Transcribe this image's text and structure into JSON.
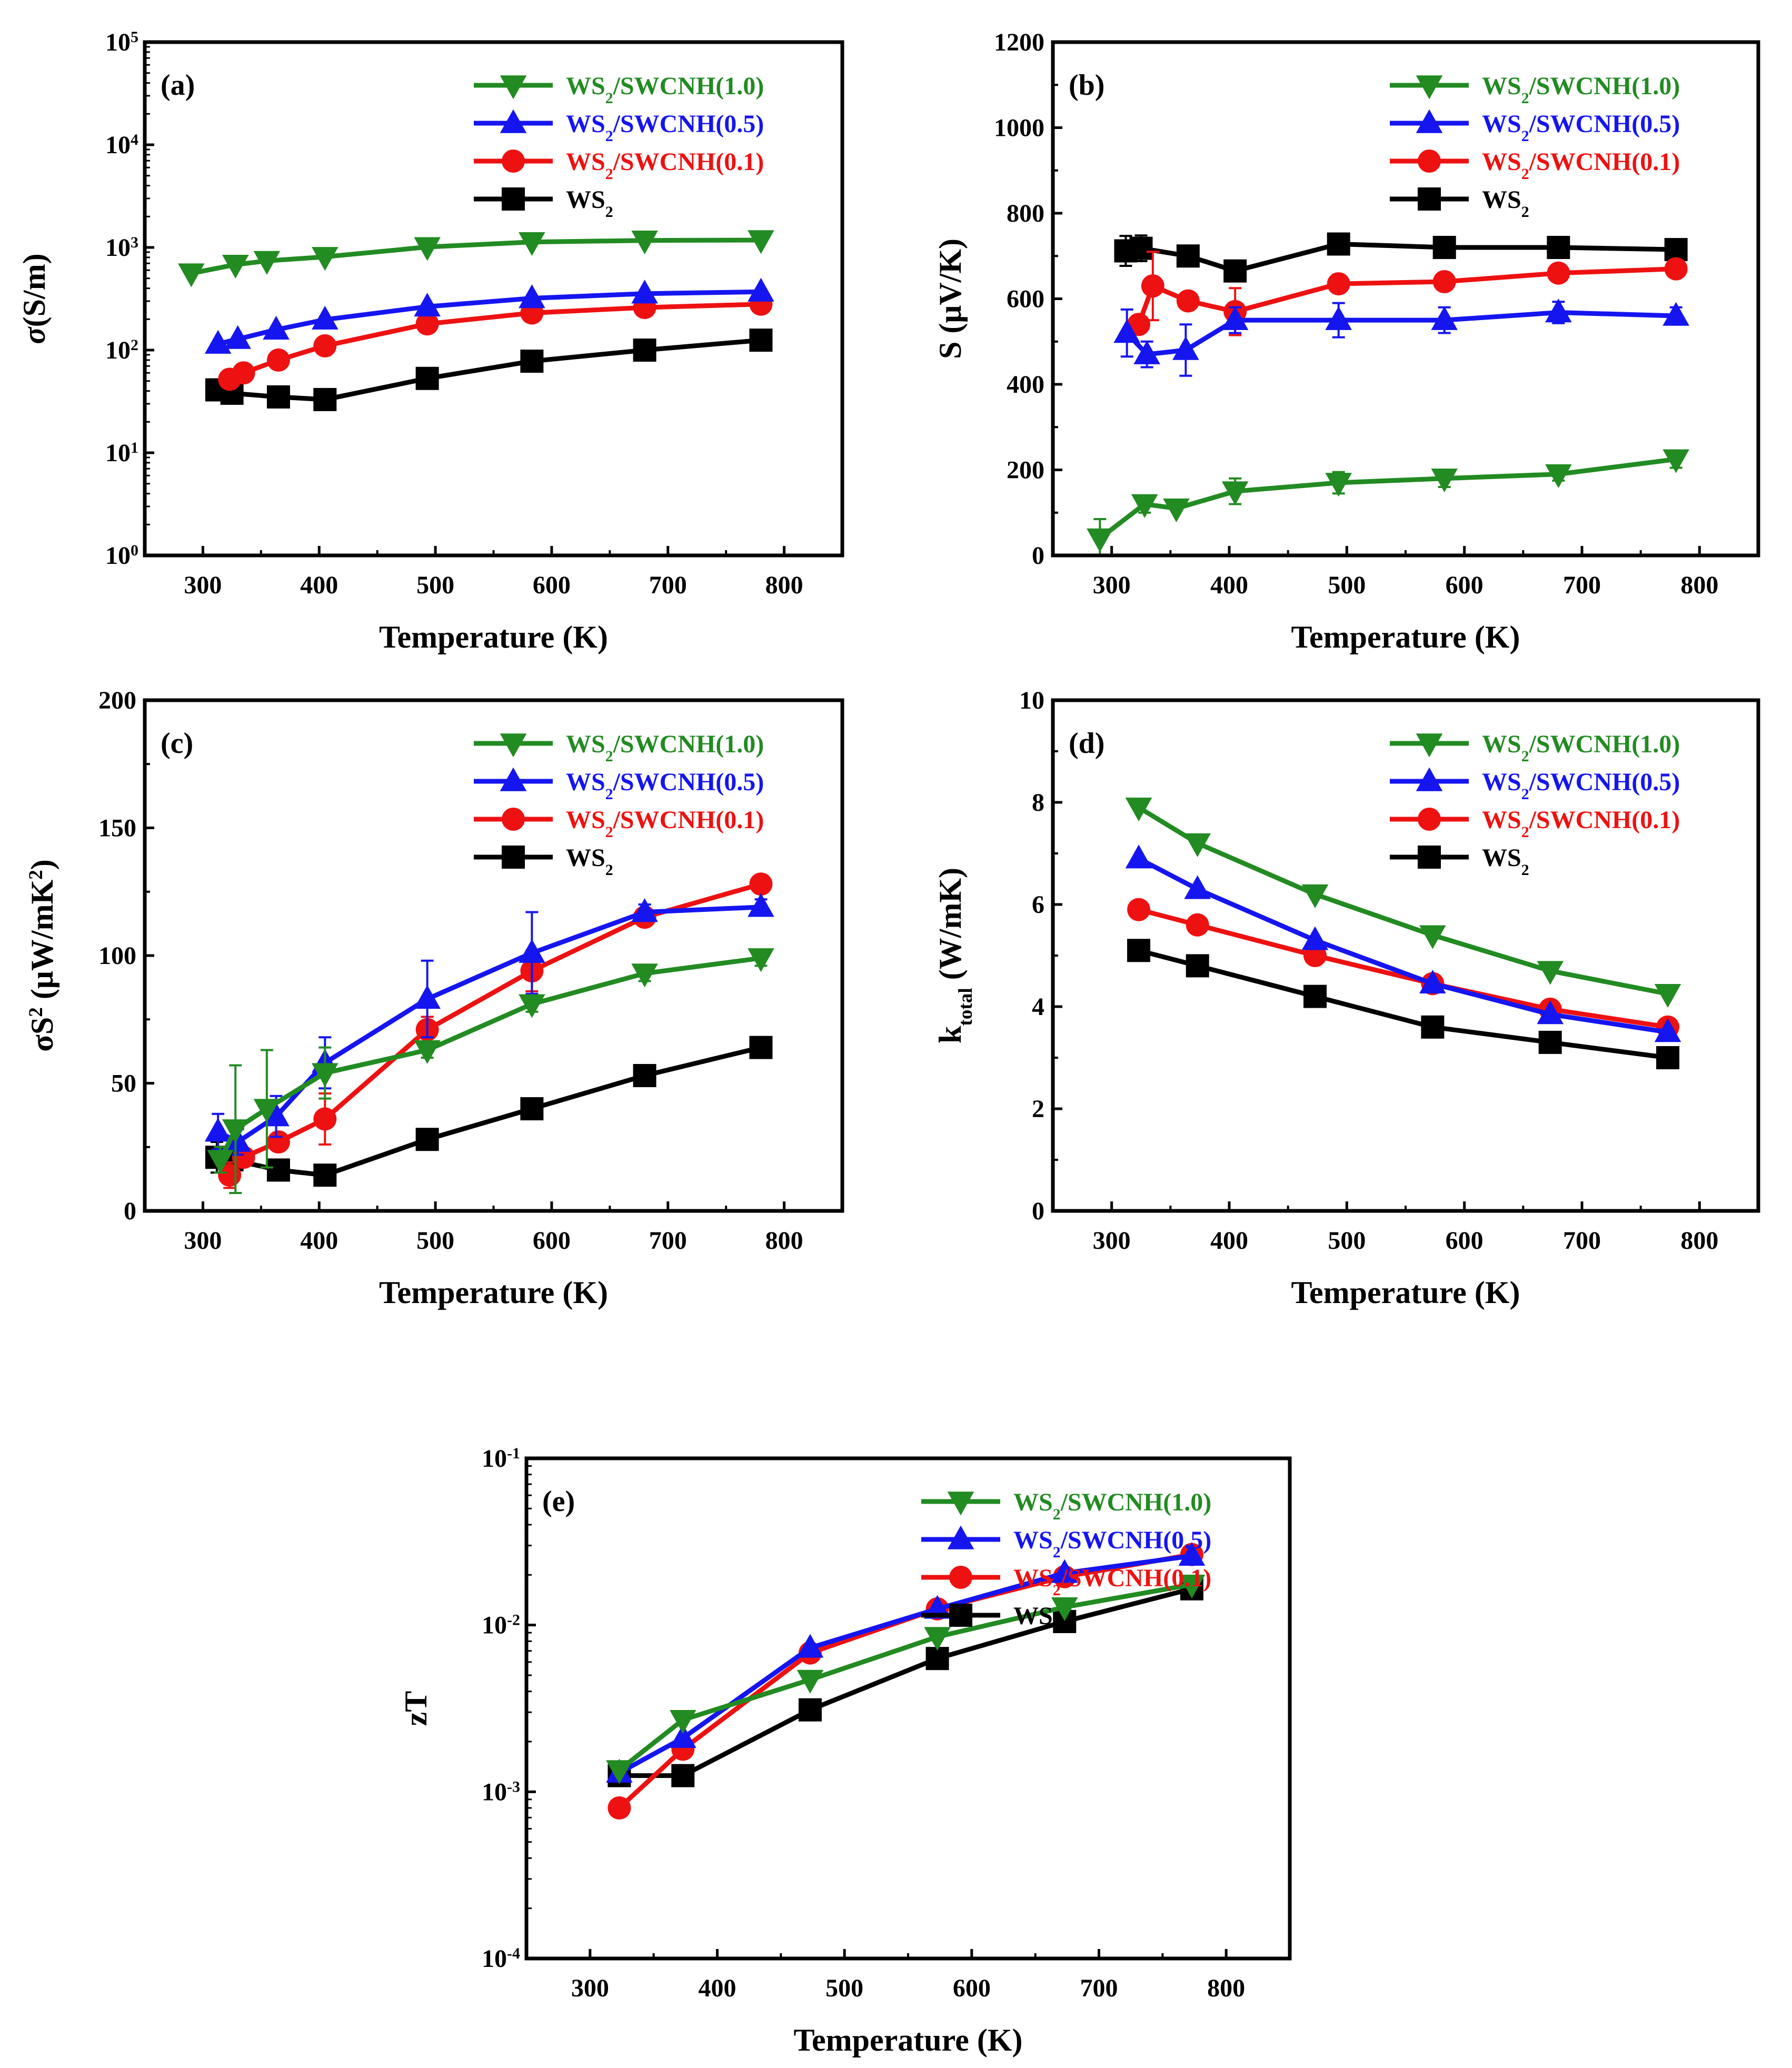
{
  "figure": {
    "legend_entries": [
      "WS2/SWCNH(1.0)",
      "WS2/SWCNH(0.5)",
      "WS2/SWCNH(0.1)",
      "WS2"
    ],
    "colors": {
      "WS2/SWCNH(1.0)": "#228b22",
      "WS2/SWCNH(0.5)": "#1515f0",
      "WS2/SWCNH(0.1)": "#ee1111",
      "WS2": "#000000"
    },
    "markers": {
      "WS2/SWCNH(1.0)": "triangle-down",
      "WS2/SWCNH(0.5)": "triangle-up",
      "WS2/SWCNH(0.1)": "circle",
      "WS2": "square"
    }
  },
  "chart_data": [
    {
      "id": "a",
      "panel_label": "(a)",
      "type": "line",
      "yscale": "log",
      "xlabel": "Temperature (K)",
      "ylabel": "σ(S/m)",
      "xlim": [
        250,
        850
      ],
      "ylim": [
        1,
        100000
      ],
      "xticks": [
        300,
        400,
        500,
        600,
        700,
        800
      ],
      "yticks": [
        1,
        10,
        100,
        1000,
        10000,
        100000
      ],
      "ytick_labels": [
        [
          "10",
          "0"
        ],
        [
          "10",
          "1"
        ],
        [
          "10",
          "2"
        ],
        [
          "10",
          "3"
        ],
        [
          "10",
          "4"
        ],
        [
          "10",
          "5"
        ]
      ],
      "series": [
        {
          "name": "WS2/SWCNH(1.0)",
          "x": [
            290,
            328,
            355,
            405,
            493,
            583,
            680,
            780
          ],
          "y": [
            560,
            680,
            740,
            810,
            1010,
            1130,
            1170,
            1180
          ]
        },
        {
          "name": "WS2/SWCNH(0.5)",
          "x": [
            313,
            330,
            363,
            405,
            493,
            583,
            680,
            780
          ],
          "y": [
            115,
            128,
            158,
            198,
            265,
            320,
            355,
            370
          ]
        },
        {
          "name": "WS2/SWCNH(0.1)",
          "x": [
            323,
            335,
            365,
            405,
            493,
            583,
            680,
            780
          ],
          "y": [
            52,
            60,
            80,
            110,
            180,
            230,
            260,
            280
          ]
        },
        {
          "name": "WS2",
          "x": [
            312,
            325,
            365,
            405,
            493,
            583,
            680,
            780
          ],
          "y": [
            41,
            38,
            35,
            33,
            53,
            78,
            100,
            125
          ]
        }
      ]
    },
    {
      "id": "b",
      "panel_label": "(b)",
      "type": "line",
      "yscale": "linear",
      "xlabel": "Temperature (K)",
      "ylabel": "S (μV/K)",
      "xlim": [
        250,
        850
      ],
      "ylim": [
        0,
        1200
      ],
      "xticks": [
        300,
        400,
        500,
        600,
        700,
        800
      ],
      "yticks": [
        0,
        200,
        400,
        600,
        800,
        1000,
        1200
      ],
      "series": [
        {
          "name": "WS2/SWCNH(1.0)",
          "x": [
            290,
            328,
            355,
            405,
            493,
            583,
            680,
            780
          ],
          "y": [
            40,
            120,
            110,
            150,
            170,
            180,
            190,
            225
          ],
          "err": [
            45,
            20,
            0,
            30,
            25,
            20,
            15,
            20
          ]
        },
        {
          "name": "WS2/SWCNH(0.5)",
          "x": [
            313,
            330,
            363,
            405,
            493,
            583,
            680,
            780
          ],
          "y": [
            520,
            470,
            480,
            550,
            550,
            550,
            568,
            560
          ],
          "err": [
            55,
            30,
            60,
            30,
            40,
            30,
            25,
            20
          ]
        },
        {
          "name": "WS2/SWCNH(0.1)",
          "x": [
            323,
            335,
            365,
            405,
            493,
            583,
            680,
            780
          ],
          "y": [
            540,
            630,
            595,
            570,
            635,
            640,
            660,
            670
          ],
          "err": [
            0,
            80,
            15,
            55,
            15,
            15,
            15,
            15
          ]
        },
        {
          "name": "WS2",
          "x": [
            312,
            325,
            365,
            405,
            493,
            583,
            680,
            780
          ],
          "y": [
            712,
            718,
            700,
            665,
            728,
            720,
            720,
            715
          ],
          "err": [
            35,
            30,
            20,
            15,
            12,
            15,
            20,
            15
          ]
        }
      ]
    },
    {
      "id": "c",
      "panel_label": "(c)",
      "type": "line",
      "yscale": "linear",
      "xlabel": "Temperature (K)",
      "ylabel": "σS² (μW/mK²)",
      "xlim": [
        250,
        850
      ],
      "ylim": [
        0,
        200
      ],
      "xticks": [
        300,
        400,
        500,
        600,
        700,
        800
      ],
      "yticks": [
        0,
        50,
        100,
        150,
        200
      ],
      "series": [
        {
          "name": "WS2/SWCNH(1.0)",
          "x": [
            315,
            328,
            355,
            405,
            493,
            583,
            680,
            780
          ],
          "y": [
            20,
            32,
            40,
            54,
            63,
            81,
            93,
            99
          ],
          "err": [
            5,
            25,
            23,
            10,
            3,
            3,
            3,
            3
          ]
        },
        {
          "name": "WS2/SWCNH(0.5)",
          "x": [
            313,
            330,
            363,
            405,
            493,
            583,
            680,
            780
          ],
          "y": [
            31,
            27,
            37,
            58,
            83,
            101,
            117,
            119
          ],
          "err": [
            7,
            5,
            8,
            10,
            15,
            16,
            3,
            3
          ]
        },
        {
          "name": "WS2/SWCNH(0.1)",
          "x": [
            323,
            335,
            365,
            405,
            493,
            583,
            680,
            780
          ],
          "y": [
            14,
            21,
            27,
            36,
            71,
            94,
            115,
            128
          ],
          "err": [
            5,
            3,
            3,
            10,
            5,
            8,
            3,
            2
          ]
        },
        {
          "name": "WS2",
          "x": [
            312,
            325,
            365,
            405,
            493,
            583,
            680,
            780
          ],
          "y": [
            21,
            20,
            16,
            14,
            28,
            40,
            53,
            64
          ],
          "err": [
            6,
            4,
            3,
            2,
            2,
            2,
            4,
            2
          ]
        }
      ]
    },
    {
      "id": "d",
      "panel_label": "(d)",
      "type": "line",
      "yscale": "linear",
      "xlabel": "Temperature (K)",
      "ylabel": "k_total (W/mK)",
      "xlim": [
        250,
        850
      ],
      "ylim": [
        0,
        10
      ],
      "xticks": [
        300,
        400,
        500,
        600,
        700,
        800
      ],
      "yticks": [
        0,
        2,
        4,
        6,
        8,
        10
      ],
      "series": [
        {
          "name": "WS2/SWCNH(1.0)",
          "x": [
            323,
            373,
            473,
            573,
            673,
            773
          ],
          "y": [
            7.9,
            7.2,
            6.2,
            5.4,
            4.7,
            4.25
          ]
        },
        {
          "name": "WS2/SWCNH(0.5)",
          "x": [
            323,
            373,
            473,
            573,
            673,
            773
          ],
          "y": [
            6.9,
            6.3,
            5.3,
            4.45,
            3.85,
            3.5
          ]
        },
        {
          "name": "WS2/SWCNH(0.1)",
          "x": [
            323,
            373,
            473,
            573,
            673,
            773
          ],
          "y": [
            5.9,
            5.6,
            5.0,
            4.45,
            3.95,
            3.6
          ]
        },
        {
          "name": "WS2",
          "x": [
            323,
            373,
            473,
            573,
            673,
            773
          ],
          "y": [
            5.1,
            4.8,
            4.2,
            3.6,
            3.3,
            3.0
          ]
        }
      ]
    },
    {
      "id": "e",
      "panel_label": "(e)",
      "type": "line",
      "yscale": "log",
      "xlabel": "Temperature (K)",
      "ylabel": "zT",
      "xlim": [
        250,
        850
      ],
      "ylim": [
        0.0001,
        0.1
      ],
      "xticks": [
        300,
        400,
        500,
        600,
        700,
        800
      ],
      "yticks": [
        0.0001,
        0.001,
        0.01,
        0.1
      ],
      "ytick_labels": [
        [
          "10",
          "-4"
        ],
        [
          "10",
          "-3"
        ],
        [
          "10",
          "-2"
        ],
        [
          "10",
          "-1"
        ]
      ],
      "series": [
        {
          "name": "WS2/SWCNH(1.0)",
          "x": [
            323,
            373,
            473,
            573,
            673,
            773
          ],
          "y": [
            0.00135,
            0.0027,
            0.0047,
            0.0085,
            0.0128,
            0.0175
          ]
        },
        {
          "name": "WS2/SWCNH(0.5)",
          "x": [
            323,
            373,
            473,
            573,
            673,
            773
          ],
          "y": [
            0.0013,
            0.0021,
            0.0073,
            0.0125,
            0.0205,
            0.026
          ]
        },
        {
          "name": "WS2/SWCNH(0.1)",
          "x": [
            323,
            373,
            473,
            573,
            673,
            773
          ],
          "y": [
            0.0008,
            0.0018,
            0.0068,
            0.0125,
            0.0195,
            0.0265
          ]
        },
        {
          "name": "WS2",
          "x": [
            323,
            373,
            473,
            573,
            673,
            773
          ],
          "y": [
            0.00125,
            0.00125,
            0.0031,
            0.0063,
            0.0105,
            0.0165
          ]
        }
      ]
    }
  ]
}
